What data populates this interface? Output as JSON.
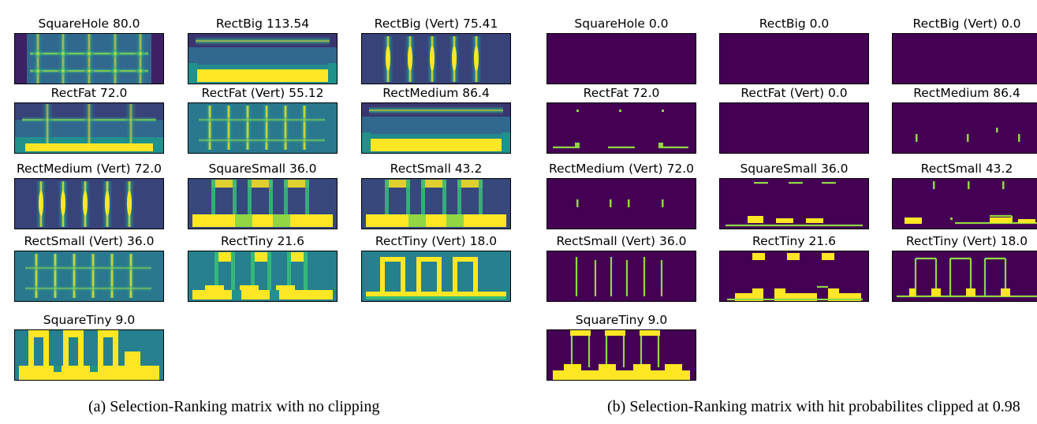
{
  "chart_data": [
    {
      "type": "heatmap",
      "caption": "(a) Selection-Ranking matrix with no clipping",
      "panels": [
        {
          "title": "SquareHole 80.0",
          "pattern": "hole"
        },
        {
          "title": "RectBig 113.54",
          "pattern": "big"
        },
        {
          "title": "RectBig (Vert)  75.41",
          "pattern": "vert"
        },
        {
          "title": "RectFat 72.0",
          "pattern": "fat"
        },
        {
          "title": "RectFat (Vert)  55.12",
          "pattern": "fatvert"
        },
        {
          "title": "RectMedium 86.4",
          "pattern": "big"
        },
        {
          "title": "RectMedium (Vert)  72.0",
          "pattern": "vert"
        },
        {
          "title": "SquareSmall 36.0",
          "pattern": "small"
        },
        {
          "title": "RectSmall 43.2",
          "pattern": "small"
        },
        {
          "title": "RectSmall (Vert)  36.0",
          "pattern": "fatvert"
        },
        {
          "title": "RectTiny 21.6",
          "pattern": "tiny"
        },
        {
          "title": "RectTiny (Vert)  18.0",
          "pattern": "tinyvert"
        },
        {
          "title": "SquareTiny 9.0",
          "pattern": "squaretiny"
        }
      ]
    },
    {
      "type": "heatmap",
      "caption": "(b) Selection-Ranking matrix with hit probabilites clipped at 0.98",
      "panels": [
        {
          "title": "SquareHole 0.0",
          "pattern": "empty"
        },
        {
          "title": "RectBig 0.0",
          "pattern": "empty"
        },
        {
          "title": "RectBig (Vert)  0.0",
          "pattern": "empty"
        },
        {
          "title": "RectFat 72.0",
          "pattern": "clip_fat"
        },
        {
          "title": "RectFat (Vert)  0.0",
          "pattern": "empty"
        },
        {
          "title": "RectMedium 86.4",
          "pattern": "clip_medium"
        },
        {
          "title": "RectMedium (Vert)  72.0",
          "pattern": "clip_medvert"
        },
        {
          "title": "SquareSmall 36.0",
          "pattern": "clip_sqsmall"
        },
        {
          "title": "RectSmall 43.2",
          "pattern": "clip_rectsmall"
        },
        {
          "title": "RectSmall (Vert)  36.0",
          "pattern": "clip_smallvert"
        },
        {
          "title": "RectTiny 21.6",
          "pattern": "clip_tiny"
        },
        {
          "title": "RectTiny (Vert)  18.0",
          "pattern": "clip_tinyvert"
        },
        {
          "title": "SquareTiny 9.0",
          "pattern": "clip_squaretiny"
        }
      ]
    }
  ],
  "colors": {
    "dark": "#440154",
    "blue": "#31688e",
    "teal": "#21918c",
    "green": "#35b779",
    "yellow": "#fde725",
    "lightgreen": "#90d743"
  }
}
